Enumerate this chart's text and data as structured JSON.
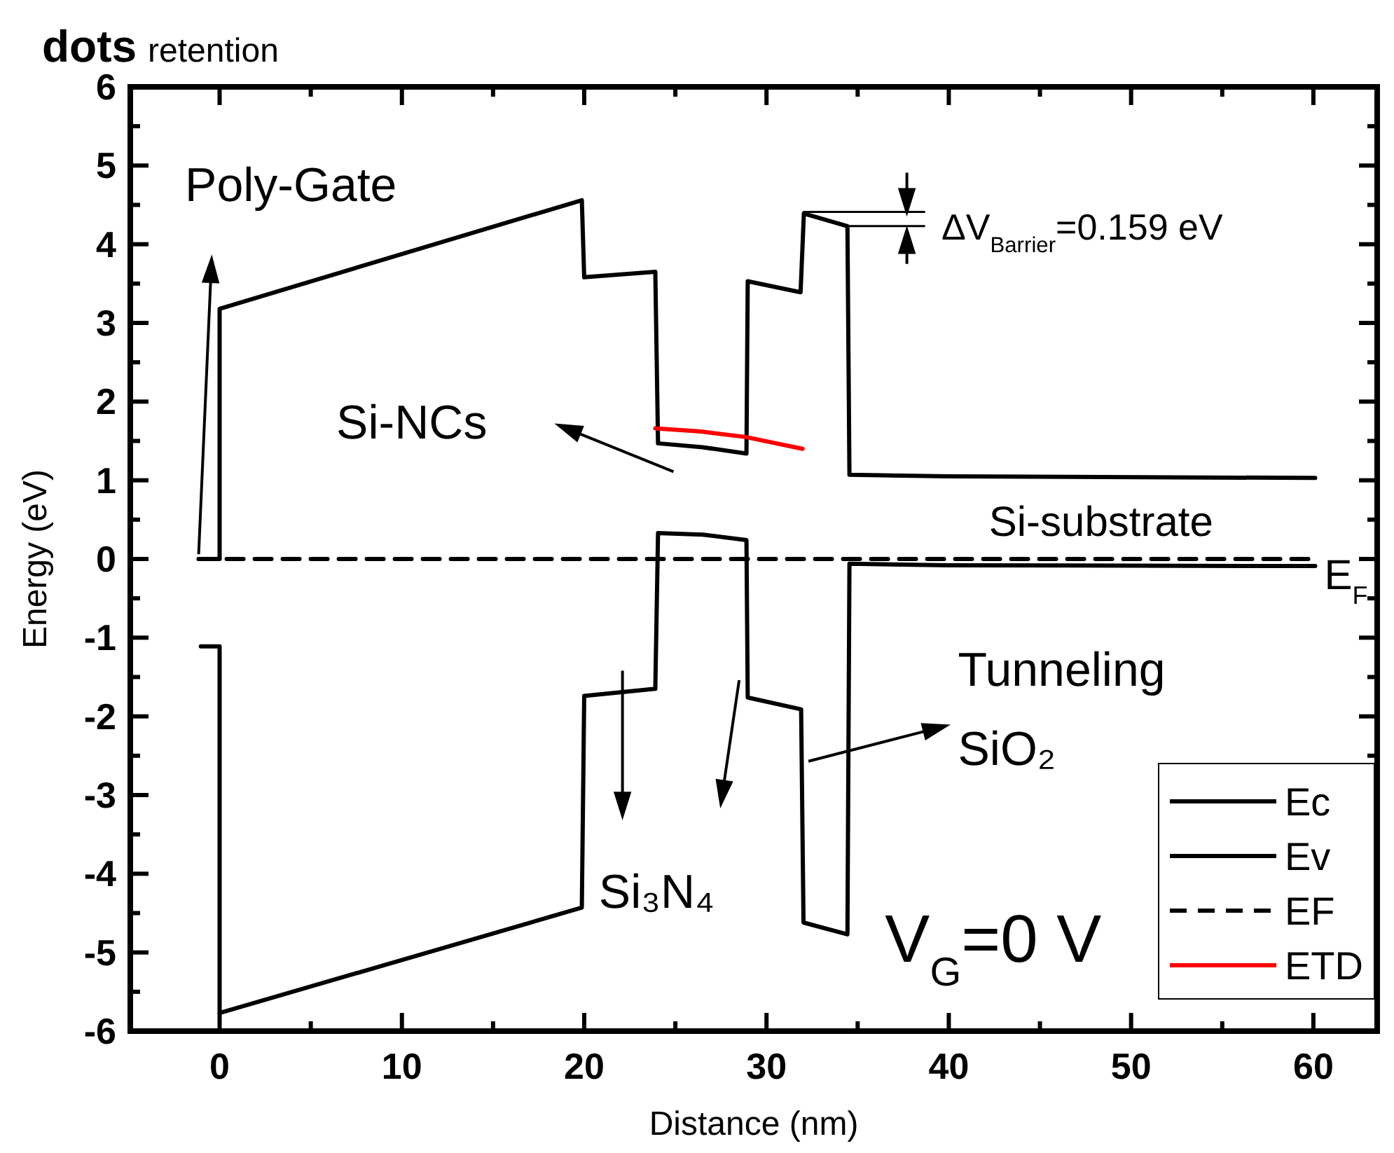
{
  "chart_data": {
    "type": "line",
    "title": "dots",
    "subtitle": "retention",
    "xlabel": "Distance (nm)",
    "ylabel": "Energy (eV)",
    "xlim": [
      -4.9,
      63.5
    ],
    "ylim": [
      -6,
      6
    ],
    "xticks": [
      0,
      {
        "value": 5,
        "label": null
      },
      10,
      {
        "value": 15,
        "label": null
      },
      20,
      {
        "value": 25,
        "label": null
      },
      30,
      {
        "value": 35,
        "label": null
      },
      40,
      {
        "value": 45,
        "label": null
      },
      50,
      {
        "value": 55,
        "label": null
      },
      60
    ],
    "yticks": [
      -6,
      {
        "value": -5.5,
        "label": null
      },
      -5,
      {
        "value": -4.5,
        "label": null
      },
      -4,
      {
        "value": -3.5,
        "label": null
      },
      -3,
      {
        "value": -2.5,
        "label": null
      },
      -2,
      {
        "value": -1.5,
        "label": null
      },
      -1,
      {
        "value": -0.5,
        "label": null
      },
      0,
      {
        "value": 0.5,
        "label": null
      },
      1,
      {
        "value": 1.5,
        "label": null
      },
      2,
      {
        "value": 2.5,
        "label": null
      },
      3,
      {
        "value": 3.5,
        "label": null
      },
      4,
      {
        "value": 4.5,
        "label": null
      },
      5,
      {
        "value": 5.5,
        "label": null
      },
      6
    ],
    "legend": "bottom right",
    "series": [
      {
        "name": "Ec",
        "color": "#000000",
        "line_style": "solid",
        "x": [
          -1.15,
          0,
          0,
          19.87,
          20.0,
          23.9,
          24.05,
          26.5,
          28.9,
          28.97,
          31.87,
          32.05,
          34.44,
          34.55,
          40,
          60.1
        ],
        "values": [
          0,
          0,
          3.18,
          4.56,
          3.58,
          3.65,
          1.47,
          1.42,
          1.34,
          3.53,
          3.39,
          4.39,
          4.23,
          1.07,
          1.05,
          1.03
        ]
      },
      {
        "name": "Ev",
        "color": "#000000",
        "line_style": "solid",
        "x": [
          -1.03,
          0,
          0,
          19.87,
          20.0,
          23.9,
          24.05,
          26.5,
          28.9,
          28.97,
          31.9,
          32.03,
          34.44,
          34.55,
          40,
          60.1
        ],
        "values": [
          -1.11,
          -1.11,
          -5.77,
          -4.43,
          -1.74,
          -1.65,
          0.33,
          0.31,
          0.24,
          -1.76,
          -1.91,
          -4.62,
          -4.77,
          -0.06,
          -0.08,
          -0.09
        ]
      },
      {
        "name": "EF",
        "color": "#000000",
        "line_style": "dashed",
        "x": [
          -1.15,
          60.1
        ],
        "values": [
          0,
          0
        ]
      },
      {
        "name": "ETD",
        "color": "#ff0000",
        "line_style": "solid",
        "x": [
          23.9,
          26.4,
          28.85,
          31.98
        ],
        "values": [
          1.66,
          1.62,
          1.55,
          1.4
        ]
      }
    ],
    "annotations": [
      "Poly-Gate",
      "Si-NCs",
      "Si-substrate",
      "E$_{F}$",
      "Tunneling",
      "SiO₂",
      "Si₃N₄",
      "V$_{G}$=0 V",
      {
        "text": "ΔV$_{Barrier}$=0.159 eV",
        "x": 34.44,
        "y": 4.23
      }
    ]
  }
}
